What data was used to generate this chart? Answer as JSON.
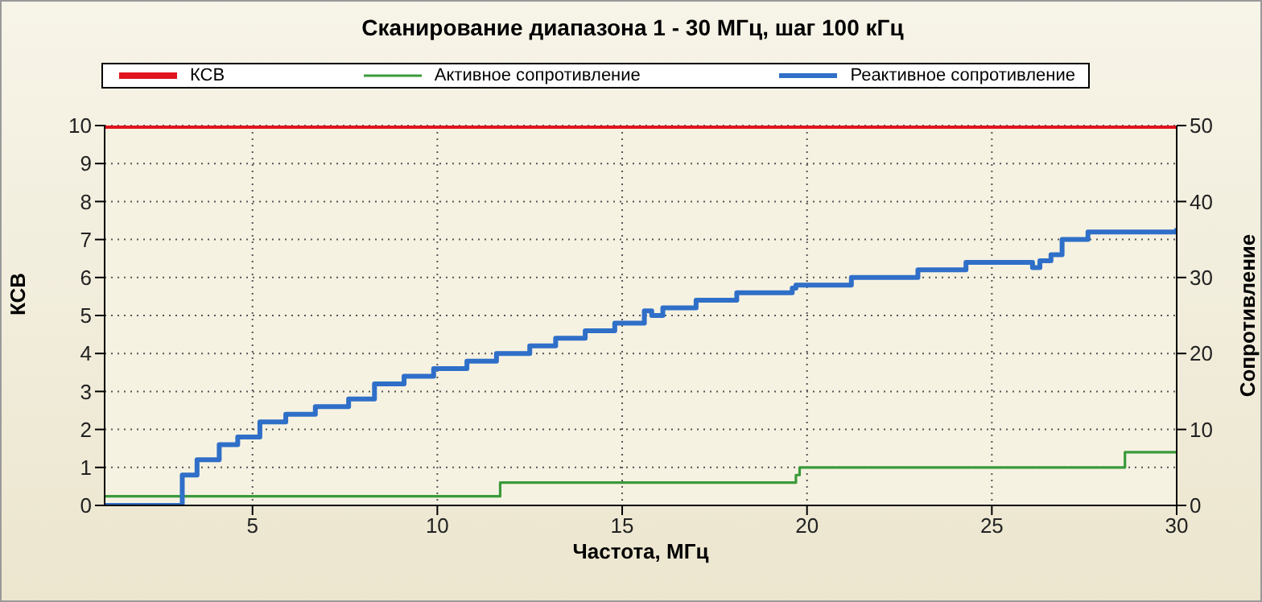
{
  "chart_data": {
    "type": "step",
    "title": "Сканирование диапазона 1 - 30 МГц, шаг 100 кГц",
    "xlabel": "Частота, МГц",
    "ylabel": "КСВ",
    "y2label": "Сопротивление",
    "xlim": [
      1,
      30
    ],
    "xticks": [
      5,
      10,
      15,
      20,
      25,
      30
    ],
    "ylim": [
      0,
      10
    ],
    "yticks": [
      0,
      1,
      2,
      3,
      4,
      5,
      6,
      7,
      8,
      9,
      10
    ],
    "y2lim": [
      0,
      50
    ],
    "y2ticks": [
      0,
      10,
      20,
      30,
      40,
      50
    ],
    "grid": true,
    "legend": "top",
    "marker": "none",
    "series": [
      {
        "name": "КСВ",
        "color": "#e0141e",
        "x": [
          1,
          30
        ],
        "values": [
          10,
          10
        ]
      },
      {
        "name": "Активное сопротивление",
        "color": "#3a9a3a",
        "axis": "y2",
        "x": [
          1,
          11.7,
          19.7,
          19.8,
          28.6,
          30
        ],
        "values": [
          1.2,
          3,
          4,
          5,
          7,
          7
        ]
      },
      {
        "name": "Реактивное сопротивление",
        "color": "#2f6fc8",
        "axis": "y2",
        "x": [
          1,
          3.1,
          3.5,
          4.1,
          4.6,
          5.2,
          5.9,
          6.7,
          7.6,
          8.3,
          9.1,
          9.9,
          10.8,
          11.6,
          12.5,
          13.2,
          14,
          14.8,
          15.6,
          15.8,
          16.1,
          17,
          18.1,
          19.6,
          19.7,
          21.2,
          23,
          24.3,
          26.1,
          26.3,
          26.6,
          26.9,
          27.6,
          29.9,
          30
        ],
        "values": [
          0,
          4,
          6,
          8,
          9,
          11,
          12,
          13,
          14,
          16,
          17,
          18,
          19,
          20,
          21,
          22,
          23,
          24,
          25.6,
          25,
          26,
          27,
          28,
          28.6,
          29,
          30,
          31,
          32,
          31.3,
          32.2,
          33,
          35,
          36,
          36,
          36.5
        ]
      }
    ]
  }
}
